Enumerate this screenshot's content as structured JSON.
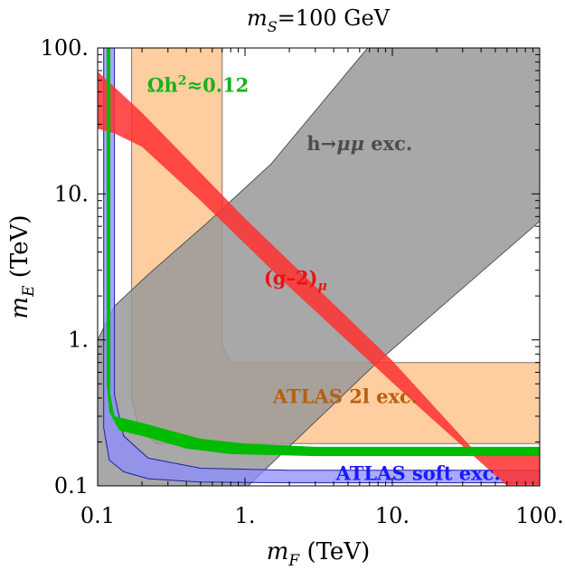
{
  "chart_data": {
    "type": "region-plot",
    "title": "m_S=100 GeV",
    "title_parts": {
      "var": "m",
      "sub": "S",
      "rest": "=100 GeV"
    },
    "xlabel": {
      "var": "m",
      "sub": "F",
      "rest": " (TeV)"
    },
    "ylabel": {
      "var": "m",
      "sub": "E",
      "rest": " (TeV)"
    },
    "x_scale": "log",
    "y_scale": "log",
    "xlim": [
      0.1,
      100
    ],
    "ylim": [
      0.1,
      100
    ],
    "x_ticks": [
      0.1,
      1,
      10,
      100
    ],
    "x_tick_labels": [
      "0.1",
      "1.",
      "10.",
      "100."
    ],
    "y_ticks": [
      0.1,
      1,
      10,
      100
    ],
    "y_tick_labels": [
      "0.1",
      "1.",
      "10.",
      "100."
    ],
    "regions": [
      {
        "name": "atlas-2l-exclusion",
        "label": "ATLAS 2l exc.",
        "fill": "#ffc58f",
        "stroke": "#777777",
        "opacity": 0.85,
        "label_color": "#b8600f",
        "label_at": [
          4.8,
          0.37
        ],
        "polygon": [
          [
            0.17,
            100
          ],
          [
            0.7,
            100
          ],
          [
            0.7,
            0.9
          ],
          [
            0.8,
            0.7
          ],
          [
            100,
            0.7
          ],
          [
            100,
            0.195
          ],
          [
            0.25,
            0.195
          ],
          [
            0.19,
            0.25
          ],
          [
            0.17,
            0.4
          ]
        ]
      },
      {
        "name": "h-mumu-exclusion",
        "label": "h→μμ exc.",
        "label_parts": {
          "pre": "h→",
          "greek": "μμ",
          "post": " exc."
        },
        "fill": "#999999",
        "stroke": "#555555",
        "opacity": 0.85,
        "label_color": "#4d4d4d",
        "label_at": [
          6.0,
          20
        ],
        "polygon": [
          [
            0.1,
            0.1
          ],
          [
            0.1,
            1.0
          ],
          [
            0.13,
            1.7
          ],
          [
            0.22,
            2.8
          ],
          [
            0.55,
            6.3
          ],
          [
            1.5,
            16
          ],
          [
            6.8,
            100
          ],
          [
            100,
            100
          ],
          [
            100,
            6.5
          ],
          [
            8,
            0.71
          ],
          [
            1.05,
            0.1
          ]
        ]
      },
      {
        "name": "atlas-soft-exclusion",
        "label": "ATLAS soft exc.",
        "fill": "#8c8cff",
        "stroke": "#2020a0",
        "opacity": 0.75,
        "label_color": "#1a1aff",
        "label_at": [
          15,
          0.11
        ],
        "polygon": [
          [
            0.11,
            100
          ],
          [
            0.13,
            100
          ],
          [
            0.13,
            0.42
          ],
          [
            0.15,
            0.22
          ],
          [
            0.22,
            0.155
          ],
          [
            0.5,
            0.132
          ],
          [
            2,
            0.128
          ],
          [
            100,
            0.128
          ],
          [
            100,
            0.105
          ],
          [
            2,
            0.105
          ],
          [
            0.5,
            0.106
          ],
          [
            0.22,
            0.112
          ],
          [
            0.15,
            0.125
          ],
          [
            0.12,
            0.15
          ],
          [
            0.11,
            0.25
          ]
        ]
      },
      {
        "name": "g-2-muon-band",
        "label": "(g–2)μ",
        "label_parts": {
          "main": "(g–2)",
          "sub": "μ"
        },
        "fill": "#ff3030",
        "stroke": "none",
        "opacity": 0.85,
        "label_color": "#ee1010",
        "label_at": [
          2.2,
          2.4
        ],
        "polygon": [
          [
            0.1,
            69
          ],
          [
            0.2,
            36
          ],
          [
            1,
            6.8
          ],
          [
            10,
            0.72
          ],
          [
            35,
            0.18
          ],
          [
            100,
            0.165
          ],
          [
            100,
            0.1
          ],
          [
            60,
            0.1
          ],
          [
            15,
            0.35
          ],
          [
            2,
            2.3
          ],
          [
            0.5,
            9
          ],
          [
            0.2,
            21
          ],
          [
            0.13,
            26
          ],
          [
            0.1,
            28
          ]
        ]
      },
      {
        "name": "relic-density-band",
        "label": "Ωh²≈0.12",
        "label_parts": {
          "pre": "Ωh",
          "sup": "2",
          "post": "≈0.12"
        },
        "fill": "#00bb00",
        "stroke": "none",
        "opacity": 1.0,
        "label_color": "#16b316",
        "label_at": [
          0.48,
          50
        ],
        "polygon": [
          [
            0.115,
            100
          ],
          [
            0.122,
            100
          ],
          [
            0.122,
            0.42
          ],
          [
            0.13,
            0.3
          ],
          [
            0.2,
            0.27
          ],
          [
            0.5,
            0.21
          ],
          [
            1,
            0.195
          ],
          [
            3,
            0.185
          ],
          [
            100,
            0.185
          ],
          [
            100,
            0.16
          ],
          [
            3,
            0.16
          ],
          [
            0.8,
            0.165
          ],
          [
            0.4,
            0.18
          ],
          [
            0.2,
            0.22
          ],
          [
            0.14,
            0.24
          ],
          [
            0.12,
            0.32
          ],
          [
            0.115,
            0.5
          ]
        ]
      }
    ],
    "colors": {
      "frame": "#000000",
      "ticks": "#000000",
      "background": "#ffffff"
    }
  }
}
